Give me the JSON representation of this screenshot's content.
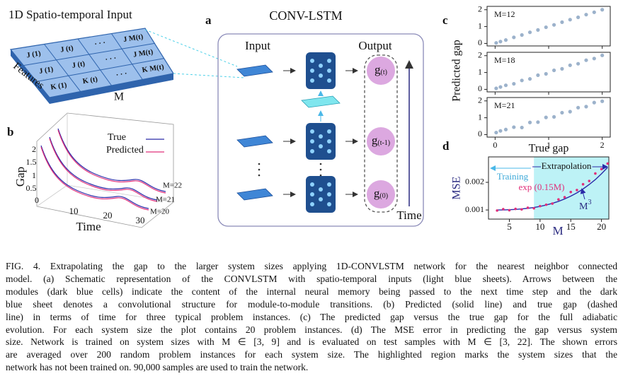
{
  "panel_a": {
    "left_title": "1D Spatio-temporal Input",
    "label": "a",
    "title": "CONV-LSTM",
    "input": "Input",
    "output": "Output",
    "features": "Features",
    "m": "M",
    "time": "Time",
    "cells": [
      [
        "J (1)",
        "J (t)",
        "· · ·",
        "J M(t)"
      ],
      [
        "J (1)",
        "J (t)",
        "· · ·",
        "J M(t)"
      ],
      [
        "K (1)",
        "K (t)",
        "· · ·",
        "K M(t)"
      ]
    ],
    "outputs": [
      {
        "g": "g",
        "sub": "(t)"
      },
      {
        "g": "g",
        "sub": "(t-1)"
      },
      {
        "g": "g",
        "sub": "(0)"
      }
    ]
  },
  "panel_b": {
    "label": "b",
    "ylabel": "Gap",
    "xlabel": "Time",
    "legend": [
      "True",
      "Predicted"
    ],
    "yticks": [
      "2",
      "1.5",
      "1",
      "0.5",
      "0"
    ],
    "xticks": [
      "10",
      "20",
      "30"
    ],
    "instances": [
      "M=22",
      "M=21",
      "M=20"
    ]
  },
  "panel_c": {
    "label": "c",
    "ylabel": "Predicted gap",
    "xlabel": "True gap",
    "xlim": [
      -0.15,
      2.15
    ],
    "ylim": [
      -0.15,
      2.2
    ],
    "xticks": [
      0,
      1,
      2
    ],
    "yticks": [
      0,
      1,
      2
    ],
    "color": "#5a7fa8",
    "x": [
      0.02,
      0.1,
      0.2,
      0.35,
      0.5,
      0.65,
      0.8,
      0.95,
      1.1,
      1.25,
      1.4,
      1.55,
      1.7,
      1.85,
      2.0
    ],
    "subplots": [
      {
        "name": "M=12",
        "values": [
          0.03,
          0.11,
          0.2,
          0.36,
          0.5,
          0.66,
          0.8,
          0.96,
          1.1,
          1.26,
          1.41,
          1.55,
          1.71,
          1.85,
          2.0
        ]
      },
      {
        "name": "M=18",
        "values": [
          0.06,
          0.14,
          0.24,
          0.33,
          0.53,
          0.62,
          0.84,
          0.92,
          1.13,
          1.22,
          1.43,
          1.52,
          1.73,
          1.83,
          2.02
        ]
      },
      {
        "name": "M=21",
        "values": [
          0.12,
          0.22,
          0.3,
          0.44,
          0.42,
          0.72,
          0.74,
          1.02,
          1.05,
          1.3,
          1.36,
          1.6,
          1.66,
          1.9,
          1.98
        ]
      }
    ]
  },
  "panel_d": {
    "label": "d",
    "ylabel": "MSE",
    "xlabel": "M",
    "training": "Training",
    "extrapolation": "Extrapolation",
    "exp_label": "exp (0.15M)",
    "m3_label": "M",
    "m3_sup": "3",
    "xlim": [
      1.6,
      21.2
    ],
    "ylim": [
      0.00067,
      0.00292
    ],
    "xticks": [
      5,
      10,
      15,
      20
    ],
    "yticks": [
      0.001,
      0.002
    ],
    "train_end": 9,
    "shade_color": "#bdf2f6",
    "x": [
      3,
      4,
      5,
      6,
      7,
      8,
      9,
      10,
      11,
      12,
      13,
      14,
      15,
      16,
      17,
      18,
      19,
      20,
      21
    ],
    "points": {
      "color": "#e0307a",
      "values": [
        0.00098,
        0.00103,
        0.00099,
        0.00104,
        0.00102,
        0.00108,
        0.00106,
        0.00114,
        0.00119,
        0.00123,
        0.00138,
        0.00146,
        0.00165,
        0.00172,
        0.00193,
        0.00205,
        0.00232,
        0.00248,
        0.00268
      ]
    },
    "fit": {
      "color": "#2a2aa8",
      "values": [
        0.001,
        0.001,
        0.00101,
        0.00102,
        0.00104,
        0.00106,
        0.00109,
        0.00113,
        0.00118,
        0.00124,
        0.00131,
        0.0014,
        0.0015,
        0.00162,
        0.00176,
        0.00192,
        0.0021,
        0.00231,
        0.00254
      ]
    }
  },
  "caption": [
    "FIG. 4.   Extrapolating the gap to the larger system sizes applying 1D-CONVLSTM network for the nearest neighbor connected",
    "model. (a) Schematic representation of the CONVLSTM with spatio-temporal inputs (light blue sheets). Arrows between the",
    "modules (dark blue cells) indicate the content of the internal neural memory being passed to the next time step and the dark",
    "blue sheet denotes a convolutional structure for module-to-module transitions. (b) Predicted (solid line) and true gap (dashed",
    "line) in terms of time for three typical problem instances. (c) The predicted gap versus the true gap for the full adiabatic",
    "evolution. For each system size the plot contains 20 problem instances. (d) The MSE error in predicting the gap versus system",
    "size. Network is trained on system sizes with M ∈ [3, 9] and is evaluated on test samples with M ∈ [3, 22]. The shown errors",
    "are averaged over 200 random problem instances for each system size. The highlighted region marks the system sizes that the",
    "network has not been trained on. 90,000 samples are used to train the network."
  ]
}
